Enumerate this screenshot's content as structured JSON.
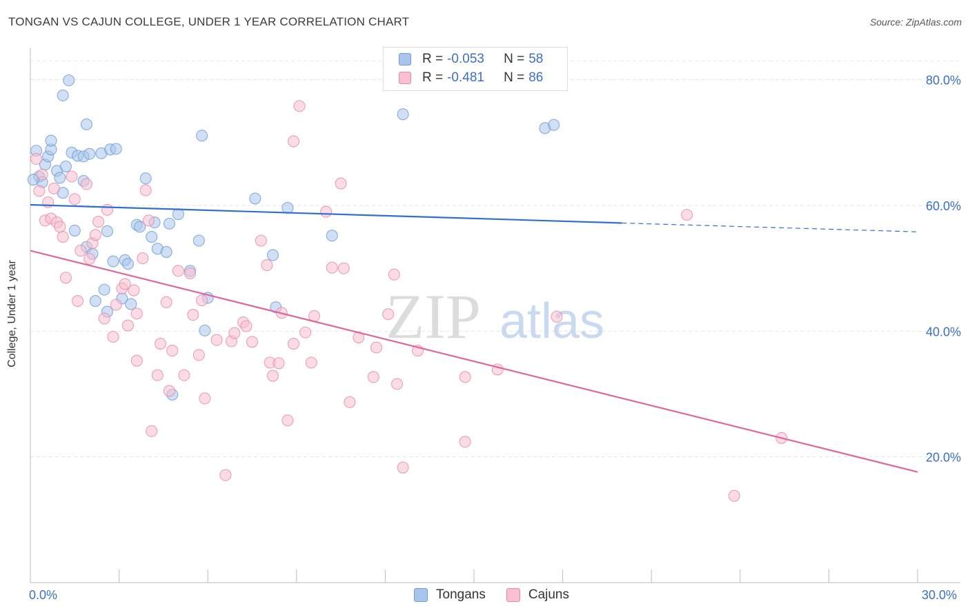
{
  "title": "TONGAN VS CAJUN COLLEGE, UNDER 1 YEAR CORRELATION CHART",
  "source": "Source: ZipAtlas.com",
  "watermark": {
    "zip": "ZIP",
    "atlas": "atlas"
  },
  "legend": {
    "rows": [
      {
        "r_label": "R =",
        "r_value": "-0.053",
        "n_label": "N =",
        "n_value": "58",
        "color": "#a9c4ea",
        "border": "#6b9bd8"
      },
      {
        "r_label": "R =",
        "r_value": "-0.481",
        "n_label": "N =",
        "n_value": "86",
        "color": "#f7bfd0",
        "border": "#e58aa8"
      }
    ]
  },
  "bottom_legend": [
    {
      "name": "Tongans",
      "color": "#a9c4ea",
      "border": "#6b9bd8"
    },
    {
      "name": "Cajuns",
      "color": "#f7bfd0",
      "border": "#e58aa8"
    }
  ],
  "chart_data": {
    "type": "scatter",
    "title": "TONGAN VS CAJUN COLLEGE, UNDER 1 YEAR CORRELATION CHART",
    "xlabel": "",
    "ylabel": "College, Under 1 year",
    "xlim": [
      0,
      30
    ],
    "ylim": [
      0,
      85
    ],
    "x_tick_labels": [
      "0.0%",
      "30.0%"
    ],
    "y_tick_labels": [
      "20.0%",
      "40.0%",
      "60.0%",
      "80.0%"
    ],
    "y_ticks": [
      20,
      40,
      60,
      80
    ],
    "grid": true,
    "legend_position": "top-center",
    "series": [
      {
        "name": "Tongans",
        "color": "#6b9bd8",
        "fill": "#a9c4ea",
        "trend": {
          "x0": 0,
          "y0": 60.1,
          "x1": 20.0,
          "y1": 57.2,
          "dashed_to_x": 30,
          "dashed_to_y": 55.8
        },
        "points": [
          [
            0.2,
            68.7
          ],
          [
            0.3,
            64.6
          ],
          [
            0.4,
            63.7
          ],
          [
            0.5,
            66.5
          ],
          [
            0.6,
            67.8
          ],
          [
            0.7,
            68.9
          ],
          [
            0.7,
            70.3
          ],
          [
            0.9,
            65.5
          ],
          [
            1.0,
            64.4
          ],
          [
            1.1,
            62.0
          ],
          [
            1.2,
            66.2
          ],
          [
            1.1,
            77.5
          ],
          [
            1.3,
            79.9
          ],
          [
            1.4,
            68.4
          ],
          [
            1.5,
            56.0
          ],
          [
            1.6,
            67.9
          ],
          [
            1.8,
            63.9
          ],
          [
            1.8,
            67.8
          ],
          [
            1.9,
            53.4
          ],
          [
            1.9,
            72.9
          ],
          [
            2.0,
            68.2
          ],
          [
            2.1,
            52.3
          ],
          [
            2.2,
            44.8
          ],
          [
            2.4,
            68.3
          ],
          [
            2.5,
            46.6
          ],
          [
            2.6,
            43.1
          ],
          [
            2.6,
            55.9
          ],
          [
            2.7,
            68.9
          ],
          [
            2.8,
            51.1
          ],
          [
            2.9,
            69.0
          ],
          [
            3.2,
            51.3
          ],
          [
            3.1,
            45.2
          ],
          [
            3.3,
            50.7
          ],
          [
            3.4,
            44.3
          ],
          [
            3.6,
            56.9
          ],
          [
            3.7,
            56.6
          ],
          [
            3.9,
            64.3
          ],
          [
            4.1,
            55.0
          ],
          [
            4.2,
            57.3
          ],
          [
            4.3,
            53.1
          ],
          [
            4.6,
            52.6
          ],
          [
            4.7,
            57.1
          ],
          [
            4.8,
            29.9
          ],
          [
            5.0,
            58.6
          ],
          [
            5.4,
            49.6
          ],
          [
            5.7,
            54.4
          ],
          [
            5.9,
            40.1
          ],
          [
            6.0,
            45.3
          ],
          [
            5.8,
            71.1
          ],
          [
            7.6,
            61.1
          ],
          [
            8.2,
            52.1
          ],
          [
            8.3,
            43.8
          ],
          [
            8.7,
            59.6
          ],
          [
            10.2,
            55.2
          ],
          [
            12.6,
            74.5
          ],
          [
            17.4,
            72.3
          ],
          [
            17.7,
            72.8
          ],
          [
            0.1,
            64.1
          ]
        ]
      },
      {
        "name": "Cajuns",
        "color": "#e58aa8",
        "fill": "#f7bfd0",
        "trend": {
          "x0": 0,
          "y0": 52.8,
          "x1": 30,
          "y1": 17.6
        },
        "points": [
          [
            0.2,
            67.4
          ],
          [
            0.4,
            64.9
          ],
          [
            0.5,
            57.6
          ],
          [
            0.6,
            60.5
          ],
          [
            0.7,
            57.9
          ],
          [
            0.8,
            62.7
          ],
          [
            0.9,
            57.3
          ],
          [
            1.0,
            56.6
          ],
          [
            1.2,
            48.5
          ],
          [
            1.4,
            64.6
          ],
          [
            1.5,
            61.0
          ],
          [
            1.6,
            44.8
          ],
          [
            1.7,
            52.8
          ],
          [
            1.9,
            63.4
          ],
          [
            2.0,
            51.5
          ],
          [
            2.1,
            54.0
          ],
          [
            2.2,
            55.3
          ],
          [
            2.3,
            57.4
          ],
          [
            2.5,
            42.0
          ],
          [
            2.6,
            59.3
          ],
          [
            2.8,
            39.1
          ],
          [
            2.9,
            44.2
          ],
          [
            3.1,
            46.8
          ],
          [
            3.2,
            47.5
          ],
          [
            3.3,
            40.9
          ],
          [
            3.6,
            35.3
          ],
          [
            3.6,
            42.8
          ],
          [
            3.8,
            51.6
          ],
          [
            3.9,
            62.4
          ],
          [
            4.0,
            57.6
          ],
          [
            4.1,
            24.1
          ],
          [
            4.3,
            33.0
          ],
          [
            4.4,
            38.0
          ],
          [
            4.6,
            44.6
          ],
          [
            4.7,
            30.5
          ],
          [
            4.8,
            36.9
          ],
          [
            5.0,
            49.6
          ],
          [
            5.2,
            33.0
          ],
          [
            5.4,
            49.2
          ],
          [
            5.5,
            42.6
          ],
          [
            5.7,
            36.2
          ],
          [
            5.8,
            44.9
          ],
          [
            5.9,
            29.3
          ],
          [
            6.3,
            38.6
          ],
          [
            6.6,
            17.1
          ],
          [
            6.8,
            38.4
          ],
          [
            6.9,
            39.7
          ],
          [
            7.2,
            41.4
          ],
          [
            7.3,
            40.8
          ],
          [
            7.5,
            38.3
          ],
          [
            7.8,
            54.4
          ],
          [
            8.0,
            50.5
          ],
          [
            8.1,
            35.0
          ],
          [
            8.2,
            32.9
          ],
          [
            8.4,
            34.9
          ],
          [
            8.5,
            42.9
          ],
          [
            8.7,
            25.8
          ],
          [
            8.9,
            38.0
          ],
          [
            8.9,
            70.2
          ],
          [
            9.1,
            75.8
          ],
          [
            9.3,
            39.8
          ],
          [
            9.5,
            35.0
          ],
          [
            9.6,
            42.4
          ],
          [
            10.0,
            59.0
          ],
          [
            10.2,
            50.1
          ],
          [
            10.5,
            63.5
          ],
          [
            10.6,
            50.0
          ],
          [
            10.8,
            28.7
          ],
          [
            11.1,
            39.0
          ],
          [
            11.6,
            32.7
          ],
          [
            11.7,
            37.4
          ],
          [
            12.1,
            42.7
          ],
          [
            12.3,
            49.0
          ],
          [
            12.4,
            31.6
          ],
          [
            12.6,
            18.3
          ],
          [
            13.1,
            36.9
          ],
          [
            14.7,
            32.7
          ],
          [
            14.7,
            22.4
          ],
          [
            15.8,
            33.9
          ],
          [
            17.8,
            42.3
          ],
          [
            22.2,
            58.5
          ],
          [
            23.8,
            13.8
          ],
          [
            25.4,
            23.0
          ],
          [
            3.5,
            46.5
          ],
          [
            1.1,
            55.0
          ],
          [
            0.3,
            62.3
          ]
        ]
      }
    ]
  }
}
